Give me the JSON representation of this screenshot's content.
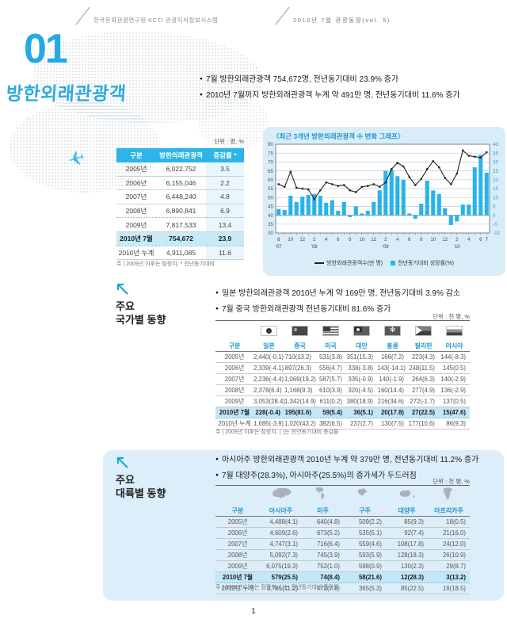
{
  "header": {
    "left": "한국문화관광연구원 KCTI 관광지식정보시스템",
    "right": "2010년 7월 관광동향(vol. 5)"
  },
  "title": {
    "number": "01",
    "text": "방한외래관광객"
  },
  "intro_bullets": [
    "7월 방한외래관광객 754,672명, 전년동기대비 23.9% 증가",
    "2010년 7월까지 방한외래관광객 누계 약 491만 명, 전년동기대비 11.6% 증가"
  ],
  "summary_table": {
    "unit": "단위 : 명, %",
    "headers": [
      "구분",
      "방한외래관광객",
      "증감률 *"
    ],
    "rows": [
      [
        "2005년",
        "6,022,752",
        "3.5"
      ],
      [
        "2006년",
        "6,155,046",
        "2.2"
      ],
      [
        "2007년",
        "6,448,240",
        "4.8"
      ],
      [
        "2008년",
        "6,890,841",
        "6.9"
      ],
      [
        "2009년",
        "7,817,533",
        "13.4"
      ],
      [
        "2010년 7월",
        "754,672",
        "23.9"
      ],
      [
        "2010년 누계",
        "4,911,085",
        "11.6"
      ]
    ],
    "highlight_row": 5,
    "dotted_after_rows": [
      3,
      5
    ],
    "footnote": "주 | 2009년 이후는 잠정치, * 전년동기대비"
  },
  "chart_data": {
    "type": "combo-bar-line",
    "title": "〈최근 3개년 방한외래관광객 수 변화 그래프〉",
    "months": [
      "2007-08",
      "2007-09",
      "2007-10",
      "2007-11",
      "2007-12",
      "2008-01",
      "2008-02",
      "2008-03",
      "2008-04",
      "2008-05",
      "2008-06",
      "2008-07",
      "2008-08",
      "2008-09",
      "2008-10",
      "2008-11",
      "2008-12",
      "2009-01",
      "2009-02",
      "2009-03",
      "2009-04",
      "2009-05",
      "2009-06",
      "2009-07",
      "2009-08",
      "2009-09",
      "2009-10",
      "2009-11",
      "2009-12",
      "2010-01",
      "2010-02",
      "2010-03",
      "2010-04",
      "2010-05",
      "2010-06",
      "2010-07"
    ],
    "tick_labels": [
      "8",
      "10",
      "12",
      "2",
      "4",
      "6",
      "8",
      "10",
      "12",
      "2",
      "4",
      "6",
      "8",
      "10",
      "12",
      "2",
      "4",
      "6",
      "7"
    ],
    "tick_month_indexes": [
      0,
      2,
      4,
      6,
      8,
      10,
      12,
      14,
      16,
      18,
      20,
      22,
      24,
      26,
      28,
      30,
      32,
      34,
      35
    ],
    "year_labels": [
      {
        "text": "'07",
        "index": 0
      },
      {
        "text": "'08",
        "index": 6
      },
      {
        "text": "'09",
        "index": 18
      },
      {
        "text": "'10",
        "index": 30
      }
    ],
    "left_axis": {
      "min": 30,
      "max": 80,
      "step": 5
    },
    "right_axis": {
      "min": -10,
      "max": 40,
      "step": 5
    },
    "series": [
      {
        "name": "방한외래관광객수(만 명)",
        "type": "line",
        "axis": "left",
        "values": [
          57.5,
          56,
          64.5,
          55.5,
          55,
          54.5,
          49,
          54,
          58.5,
          57.5,
          56.5,
          57,
          54,
          53,
          56,
          56.5,
          57.5,
          56,
          58.5,
          66,
          69.5,
          67.5,
          61.5,
          57,
          60.5,
          66,
          70.5,
          67,
          61,
          57.5,
          63.5,
          76.5,
          73.5,
          73,
          72.5,
          75.5
        ]
      },
      {
        "name": "전년동기대비 성장률(%)",
        "type": "bar",
        "axis": "right",
        "values": [
          3.5,
          3,
          11,
          7.5,
          10.5,
          11.5,
          12,
          11,
          7,
          8.5,
          2.5,
          7.5,
          -1,
          5,
          1,
          2.5,
          7.5,
          14,
          25,
          25.5,
          22,
          20,
          1,
          -2,
          6.5,
          19.5,
          14,
          12,
          4,
          -5.5,
          -3.5,
          6,
          6,
          27,
          34,
          24
        ]
      }
    ],
    "colors": {
      "bar": "#29b3e8",
      "line": "#222222",
      "panel": "#d9edf9"
    }
  },
  "country_section": {
    "label_line1": "주요",
    "label_line2": "국가별 동향",
    "bullets": [
      "일본 방한외래관광객 2010년 누계 약 169만 명, 전년동기대비 3.9% 감소",
      "7월 중국 방한외래관광객 전년동기대비 81.6% 증가"
    ],
    "unit": "단위 : 천 명, %",
    "table": {
      "headers": [
        "구분",
        "일본",
        "중국",
        "미국",
        "대만",
        "홍콩",
        "필리핀",
        "러시아"
      ],
      "icons": [
        "",
        "japan-flag",
        "china-flag",
        "usa-flag",
        "taiwan-flag",
        "hongkong-flag",
        "philippines-flag",
        "russia-flag"
      ],
      "rows": [
        [
          "2005년",
          "2,440(-0.1)",
          "710(13.2)",
          "531(3.8)",
          "351(15.3)",
          "166(7.2)",
          "223(4.3)",
          "144(-8.3)"
        ],
        [
          "2006년",
          "2,339(-4.1)",
          "897(26.3)",
          "556(4.7)",
          "338(-3.8)",
          "143(-14.1)",
          "248(11.5)",
          "145(0.5)"
        ],
        [
          "2007년",
          "2,236(-4.4)",
          "1,069(19.2)",
          "587(5.7)",
          "335(-0.9)",
          "140(-1.9)",
          "264(6.3)",
          "140(-2.9)"
        ],
        [
          "2008년",
          "2,378(6.4)",
          "1,168(9.3)",
          "610(3.9)",
          "320(-4.5)",
          "160(14.4)",
          "277(4.9)",
          "136(-2.9)"
        ],
        [
          "2009년",
          "3,053(28.4)",
          "1,342(14.9)",
          "611(0.2)",
          "380(18.9)",
          "216(34.6)",
          "272(-1.7)",
          "137(0.5)"
        ],
        [
          "2010년 7월",
          "228(-0.4)",
          "195(81.6)",
          "59(5.4)",
          "36(5.1)",
          "20(17.8)",
          "27(22.5)",
          "15(47.6)"
        ],
        [
          "2010년 누계",
          "1,685(-3.9)",
          "1,020(43.2)",
          "382(6.5)",
          "237(2.7)",
          "130(7.5)",
          "177(10.6)",
          "86(9.3)"
        ]
      ],
      "highlight_row": 5,
      "footnote": "주 | 2009년 이후는 잠정치, ( )는 전년동기대비 증감률"
    }
  },
  "continent_section": {
    "label_line1": "주요",
    "label_line2": "대륙별 동향",
    "bullets": [
      "아시아주 방한외래관광객 2010년 누계 약 379만 명, 전년동기대비 11.2% 증가",
      "7월 대양주(28.3%), 아시아주(25.5%)의 증가세가 두드러짐"
    ],
    "unit": "단위 : 천 명, %",
    "table": {
      "headers": [
        "구분",
        "아시아주",
        "미주",
        "구주",
        "대양주",
        "아프리카주"
      ],
      "icons": [
        "",
        "asia-continent",
        "america-continent",
        "europe-continent",
        "oceania-continent",
        "africa-continent"
      ],
      "rows": [
        [
          "2005년",
          "4,488(4.1)",
          "640(4.8)",
          "509(2.2)",
          "85(9.3)",
          "18(0.5)"
        ],
        [
          "2006년",
          "4,609(2.6)",
          "673(5.2)",
          "535(5.1)",
          "92(7.4)",
          "21(16.0)"
        ],
        [
          "2007년",
          "4,747(3.1)",
          "716(6.4)",
          "559(4.6)",
          "108(17.8)",
          "24(12.0)"
        ],
        [
          "2008년",
          "5,092(7.3)",
          "745(3.9)",
          "593(5.9)",
          "128(18.3)",
          "26(10.9)"
        ],
        [
          "2009년",
          "6,075(19.3)",
          "752(1.0)",
          "598(0.9)",
          "130(2.3)",
          "29(8.7)"
        ],
        [
          "2010년 7월",
          "579(25.5)",
          "74(8.4)",
          "58(21.6)",
          "12(28.3)",
          "3(13.2)"
        ],
        [
          "2010년 누계",
          "3,785(11.2)",
          "472(7.8)",
          "365(5.3)",
          "85(22.5)",
          "19(18.5)"
        ]
      ],
      "highlight_row": 5,
      "footnote": "주 | 2009년 이후는 잠정치, ( )는 전년동기대비 증감률"
    }
  },
  "page_number": "1"
}
